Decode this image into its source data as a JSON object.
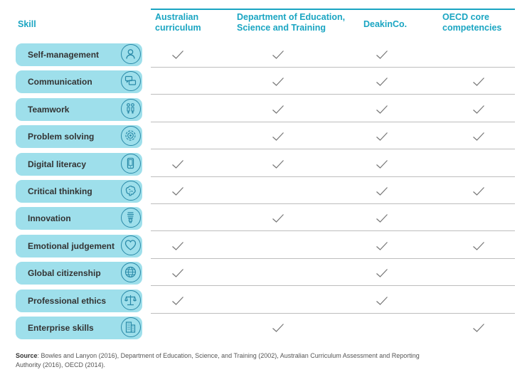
{
  "headers": {
    "skill": "Skill",
    "columns": [
      {
        "line1": "Australian",
        "line2": "curriculum"
      },
      {
        "line1": "Department of Education,",
        "line2": "Science and Training"
      },
      {
        "line1": "DeakinCo.",
        "line2": ""
      },
      {
        "line1": "OECD core",
        "line2": "competencies"
      }
    ]
  },
  "rows": [
    {
      "skill": "Self-management",
      "icon": "person-icon",
      "checks": [
        true,
        true,
        true,
        false
      ]
    },
    {
      "skill": "Communication",
      "icon": "speech-bubbles-icon",
      "checks": [
        false,
        true,
        true,
        true
      ]
    },
    {
      "skill": "Teamwork",
      "icon": "people-icon",
      "checks": [
        false,
        true,
        true,
        true
      ]
    },
    {
      "skill": "Problem solving",
      "icon": "target-icon",
      "checks": [
        false,
        true,
        true,
        true
      ]
    },
    {
      "skill": "Digital literacy",
      "icon": "smartphone-icon",
      "checks": [
        true,
        true,
        true,
        false
      ]
    },
    {
      "skill": "Critical thinking",
      "icon": "brain-icon",
      "checks": [
        true,
        false,
        true,
        true
      ]
    },
    {
      "skill": "Innovation",
      "icon": "lightbulb-icon",
      "checks": [
        false,
        true,
        true,
        false
      ]
    },
    {
      "skill": "Emotional judgement",
      "icon": "heart-icon",
      "checks": [
        true,
        false,
        true,
        true
      ]
    },
    {
      "skill": "Global citizenship",
      "icon": "globe-icon",
      "checks": [
        true,
        false,
        true,
        false
      ]
    },
    {
      "skill": "Professional ethics",
      "icon": "scales-icon",
      "checks": [
        true,
        false,
        true,
        false
      ]
    },
    {
      "skill": "Enterprise skills",
      "icon": "building-icon",
      "checks": [
        false,
        true,
        false,
        true
      ]
    }
  ],
  "source": {
    "label": "Source",
    "text": ": Bowles and Lanyon (2016), Department of Education, Science, and Training (2002), Australian Curriculum Assessment and Reporting Authority (2016), OECD (2014)."
  },
  "colors": {
    "accent": "#1aa5c2",
    "pill": "#9edfeb",
    "check": "#777777"
  }
}
